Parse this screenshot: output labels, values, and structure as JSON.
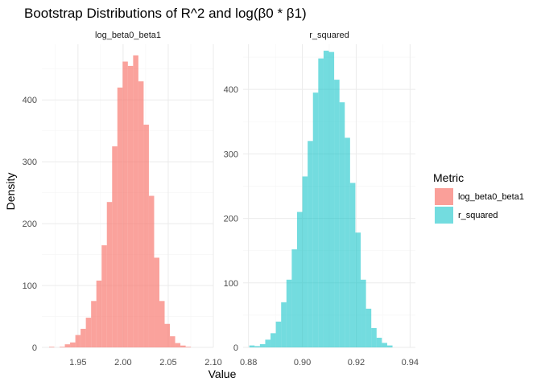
{
  "chart_data": {
    "type": "bar",
    "title": "Bootstrap Distributions of R^2 and log(β0 * β1)",
    "xlabel": "Value",
    "ylabel": "Density",
    "grid": true,
    "legend": {
      "title": "Metric",
      "placement": "right",
      "entries": [
        {
          "label": "log_beta0_beta1",
          "color": "#F8766D"
        },
        {
          "label": "r_squared",
          "color": "#00BFC4"
        }
      ]
    },
    "panels": [
      {
        "name": "log_beta0_beta1",
        "color": "#F8766D",
        "xlim": [
          1.91,
          2.1
        ],
        "ylim": [
          0,
          490
        ],
        "xticks": [
          1.95,
          2.0,
          2.05,
          2.1
        ],
        "xtick_labels": [
          "1.95",
          "2.00",
          "2.05",
          "2.10"
        ],
        "yticks": [
          0,
          100,
          200,
          300,
          400
        ],
        "ytick_labels": [
          "0",
          "100",
          "200",
          "300",
          "400"
        ],
        "bin_width": 0.00582,
        "bins_start": 1.918,
        "values": [
          1,
          0,
          1,
          5,
          8,
          20,
          30,
          48,
          75,
          108,
          165,
          235,
          325,
          420,
          462,
          455,
          472,
          430,
          360,
          245,
          145,
          75,
          38,
          18,
          7,
          3,
          1
        ]
      },
      {
        "name": "r_squared",
        "color": "#00BFC4",
        "xlim": [
          0.878,
          0.942
        ],
        "ylim": [
          0,
          470
        ],
        "xticks": [
          0.88,
          0.9,
          0.92,
          0.94
        ],
        "xtick_labels": [
          "0.88",
          "0.90",
          "0.92",
          "0.94"
        ],
        "yticks": [
          0,
          100,
          200,
          300,
          400
        ],
        "yticks_labels_note": "",
        "ytick_labels": [
          "0",
          "100",
          "200",
          "300",
          "400"
        ],
        "bin_width": 0.00197,
        "bins_start": 0.8803,
        "values": [
          3,
          2,
          5,
          12,
          22,
          40,
          70,
          105,
          152,
          210,
          265,
          320,
          395,
          448,
          460,
          458,
          415,
          380,
          325,
          255,
          178,
          105,
          60,
          30,
          15,
          7,
          3
        ]
      }
    ]
  }
}
